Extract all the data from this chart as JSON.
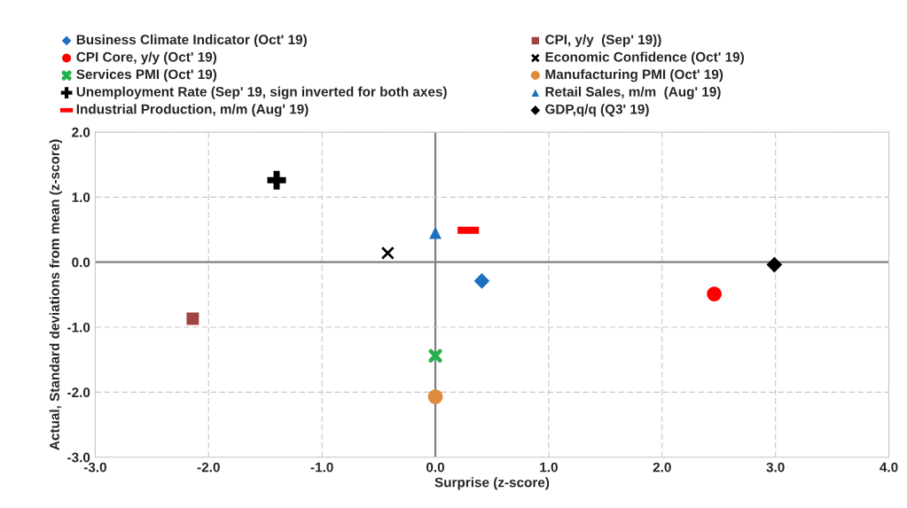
{
  "chart_data": {
    "type": "scatter",
    "xlabel": "Surprise (z-score)",
    "ylabel": "Actual, Standard deviations from mean (z-score)",
    "xlim": [
      -3,
      4
    ],
    "ylim": [
      -3,
      2
    ],
    "xticks": [
      {
        "value": -3,
        "label": "-3.0"
      },
      {
        "value": -2,
        "label": "-2.0"
      },
      {
        "value": -1,
        "label": "-1.0"
      },
      {
        "value": 0,
        "label": "0.0"
      },
      {
        "value": 1,
        "label": "1.0"
      },
      {
        "value": 2,
        "label": "2.0"
      },
      {
        "value": 3,
        "label": "3.0"
      },
      {
        "value": 4,
        "label": "4.0"
      }
    ],
    "yticks": [
      {
        "value": -3,
        "label": "-3.0"
      },
      {
        "value": -2,
        "label": "-2.0"
      },
      {
        "value": -1,
        "label": "-1.0"
      },
      {
        "value": 0,
        "label": "0.0"
      },
      {
        "value": 1,
        "label": "1.0"
      },
      {
        "value": 2,
        "label": "2.0"
      }
    ],
    "grid": true,
    "legend": "top",
    "series": [
      {
        "name": "Business Climate Indicator (Oct' 19)",
        "color": "#1f6fc0",
        "marker": "diamond",
        "x": [
          0.41
        ],
        "values": [
          -0.29
        ]
      },
      {
        "name": "CPI, y/y  (Sep' 19))",
        "color": "#a0453f",
        "marker": "square",
        "x": [
          -2.14
        ],
        "values": [
          -0.87
        ]
      },
      {
        "name": "CPI Core, y/y (Oct' 19)",
        "color": "#ff0000",
        "marker": "circle",
        "x": [
          2.46
        ],
        "values": [
          -0.49
        ]
      },
      {
        "name": "Economic Confidence (Oct' 19)",
        "color": "#000000",
        "marker": "x",
        "x": [
          -0.42
        ],
        "values": [
          0.14
        ]
      },
      {
        "name": "Services PMI (Oct' 19)",
        "color": "#22b14c",
        "marker": "star",
        "x": [
          0.0
        ],
        "values": [
          -1.44
        ]
      },
      {
        "name": "Manufacturing PMI (Oct' 19)",
        "color": "#e08a3c",
        "marker": "circle",
        "x": [
          0.0
        ],
        "values": [
          -2.07
        ]
      },
      {
        "name": "Unemployment Rate (Sep' 19, sign inverted for both axes)",
        "color": "#000000",
        "marker": "cross",
        "x": [
          -1.4
        ],
        "values": [
          1.26
        ]
      },
      {
        "name": "Retail Sales, m/m  (Aug' 19)",
        "color": "#1f6fc0",
        "marker": "triangle",
        "x": [
          0.0
        ],
        "values": [
          0.45
        ]
      },
      {
        "name": "Industrial Production, m/m (Aug' 19)",
        "color": "#ff0000",
        "x": [
          0.29
        ],
        "values": [
          0.49
        ]
      },
      {
        "name": "GDP,q/q (Q3' 19)",
        "color": "#000000",
        "marker": "diamond",
        "x": [
          2.99
        ],
        "values": [
          -0.04
        ]
      }
    ]
  }
}
